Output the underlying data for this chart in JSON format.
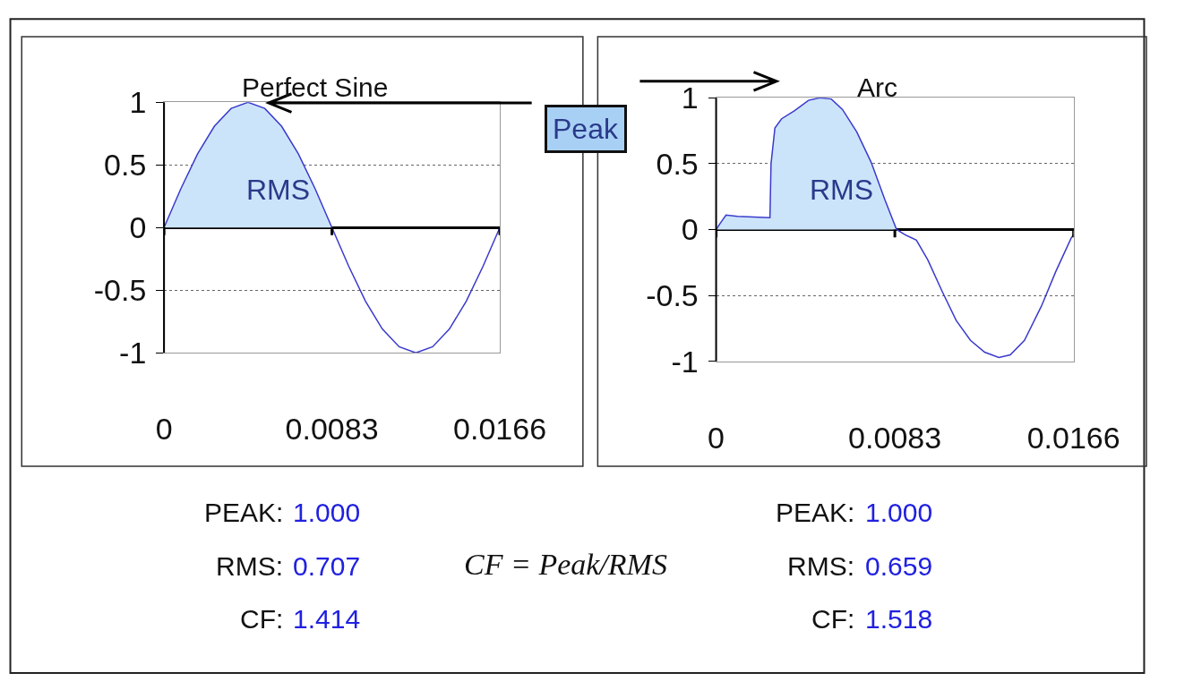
{
  "chart_data": [
    {
      "type": "line",
      "title": "Perfect Sine",
      "xlim": [
        0,
        0.0166
      ],
      "xticks": [
        0,
        0.0083,
        0.0166
      ],
      "ylim": [
        -1,
        1
      ],
      "yticks": [
        -1,
        -0.5,
        0,
        0.5,
        1
      ],
      "grid": "y",
      "series": [
        {
          "type": "area",
          "color": "#cce4fa",
          "x": [
            0,
            0.00083,
            0.00166,
            0.00249,
            0.00332,
            0.00415,
            0.00498,
            0.00581,
            0.00664,
            0.00747,
            0.0083
          ],
          "values": [
            0,
            0.309,
            0.588,
            0.809,
            0.951,
            1,
            0.951,
            0.809,
            0.588,
            0.309,
            0
          ]
        },
        {
          "type": "line",
          "color": "#3a3acc",
          "x": [
            0,
            0.00083,
            0.00166,
            0.00249,
            0.00332,
            0.00415,
            0.00498,
            0.00581,
            0.00664,
            0.00747,
            0.0083,
            0.00913,
            0.00996,
            0.01079,
            0.01162,
            0.01245,
            0.01328,
            0.01411,
            0.01494,
            0.01577,
            0.0166
          ],
          "values": [
            0,
            0.309,
            0.588,
            0.809,
            0.951,
            1,
            0.951,
            0.809,
            0.588,
            0.309,
            0,
            -0.309,
            -0.588,
            -0.809,
            -0.951,
            -1,
            -0.951,
            -0.809,
            -0.588,
            -0.309,
            0
          ]
        }
      ],
      "annotations": [
        "Peak",
        "RMS",
        "PEAK: 1.000",
        "RMS: 0.707",
        "CF: 1.414",
        "CF = Peak/RMS"
      ]
    },
    {
      "type": "line",
      "title": "Arc",
      "xlim": [
        0,
        0.0166
      ],
      "xticks": [
        0,
        0.0083,
        0.0166
      ],
      "ylim": [
        -1,
        1
      ],
      "yticks": [
        -1,
        -0.5,
        0,
        0.5,
        1
      ],
      "grid": "y",
      "series": [
        {
          "type": "area",
          "color": "#cce4fa",
          "x": [
            0,
            0.0002,
            0.00046,
            0.00099,
            0.0025,
            0.00255,
            0.00273,
            0.00304,
            0.00363,
            0.00429,
            0.00482,
            0.00535,
            0.00587,
            0.00653,
            0.0072,
            0.00785,
            0.00838
          ],
          "values": [
            0,
            0.05,
            0.11,
            0.1,
            0.09,
            0.5,
            0.77,
            0.84,
            0.9,
            0.98,
            1,
            0.99,
            0.91,
            0.74,
            0.51,
            0.22,
            0
          ]
        },
        {
          "type": "line",
          "color": "#3a3acc",
          "x": [
            0,
            0.0002,
            0.00046,
            0.00099,
            0.0025,
            0.00255,
            0.00273,
            0.00304,
            0.00363,
            0.00429,
            0.00482,
            0.00535,
            0.00587,
            0.00653,
            0.0072,
            0.00785,
            0.00838,
            0.00878,
            0.0093,
            0.00983,
            0.0105,
            0.01115,
            0.01181,
            0.01247,
            0.01313,
            0.01366,
            0.01432,
            0.01511,
            0.01577,
            0.0165,
            0.0166
          ],
          "values": [
            0,
            0.05,
            0.11,
            0.1,
            0.09,
            0.5,
            0.77,
            0.84,
            0.9,
            0.98,
            1,
            0.99,
            0.91,
            0.74,
            0.51,
            0.22,
            0,
            -0.04,
            -0.08,
            -0.23,
            -0.47,
            -0.69,
            -0.84,
            -0.93,
            -0.97,
            -0.95,
            -0.84,
            -0.58,
            -0.32,
            -0.06,
            -0.04
          ]
        }
      ],
      "annotations": [
        "RMS",
        "PEAK: 1.000",
        "RMS: 0.659",
        "CF: 1.518"
      ]
    }
  ]
}
